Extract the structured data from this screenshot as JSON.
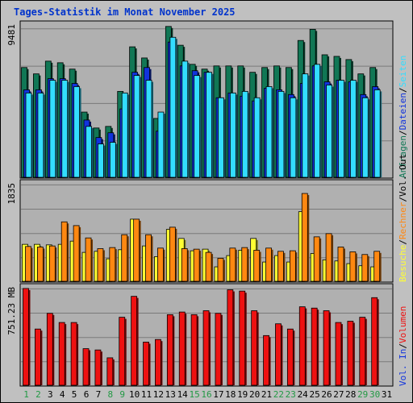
{
  "title": "Tages-Statistik im Monat November 2025",
  "colors": {
    "frame_bg": "#c0c0c0",
    "plot_bg": "#b0b0b0",
    "gridline": "#7a7a7a",
    "title": "#0033cc",
    "anfragen": "#117755",
    "dateien": "#1133dd",
    "seiten": "#33ddff",
    "besuche": "#ffff33",
    "rechner": "#ff8811",
    "volumen": "#ee1111",
    "weekend_label": "#229944",
    "weekday_label": "#000000"
  },
  "panels": {
    "top": {
      "max_label": "9481"
    },
    "middle": {
      "max_label": "1835"
    },
    "bottom": {
      "max_label": "751.23 MB"
    }
  },
  "legend": {
    "top": [
      {
        "text": "Anfragen",
        "color_key": "anfragen"
      },
      {
        "text": "/",
        "color_key": "weekday_label"
      },
      {
        "text": "Dateien",
        "color_key": "dateien"
      },
      {
        "text": "/",
        "color_key": "weekday_label"
      },
      {
        "text": "Seiten",
        "color_key": "seiten"
      }
    ],
    "middle": [
      {
        "text": "Besuche",
        "color_key": "besuche"
      },
      {
        "text": "/",
        "color_key": "weekday_label"
      },
      {
        "text": "Rechner",
        "color_key": "rechner"
      },
      {
        "text": "/",
        "color_key": "weekday_label"
      },
      {
        "text": "Vol. Out",
        "color_key": "weekday_label"
      }
    ],
    "bottom": [
      {
        "text": "Vol. In",
        "color_key": "dateien"
      },
      {
        "text": "/",
        "color_key": "weekday_label"
      },
      {
        "text": "Volumen",
        "color_key": "volumen"
      }
    ]
  },
  "chart_data": {
    "type": "bar",
    "categories": [
      "1",
      "2",
      "3",
      "4",
      "5",
      "6",
      "7",
      "8",
      "9",
      "10",
      "11",
      "12",
      "13",
      "14",
      "15",
      "16",
      "17",
      "18",
      "19",
      "20",
      "21",
      "22",
      "23",
      "24",
      "25",
      "26",
      "27",
      "28",
      "29",
      "30",
      "31"
    ],
    "weekend_days": [
      "1",
      "2",
      "8",
      "9",
      "15",
      "16",
      "22",
      "23",
      "29",
      "30"
    ],
    "panels": [
      {
        "id": "top",
        "ylim": [
          0,
          9481
        ],
        "series": [
          {
            "name": "Anfragen",
            "color_key": "anfragen",
            "values": [
              6900,
              6500,
              7300,
              7200,
              6800,
              4100,
              3100,
              3200,
              5400,
              8200,
              7500,
              3700,
              9481,
              8300,
              7100,
              6800,
              7000,
              7000,
              7000,
              6600,
              6900,
              7000,
              6900,
              8600,
              9300,
              7700,
              7600,
              7400,
              6500,
              6900,
              0
            ]
          },
          {
            "name": "Dateien",
            "color_key": "dateien",
            "values": [
              5500,
              5500,
              6200,
              6200,
              5900,
              3600,
              2500,
              2800,
              4300,
              6600,
              6900,
              2900,
              8500,
              7000,
              6700,
              6600,
              5000,
              5300,
              5100,
              4800,
              5600,
              5500,
              5200,
              5900,
              7000,
              6000,
              6100,
              6000,
              5200,
              5700,
              0
            ]
          },
          {
            "name": "Seiten",
            "color_key": "seiten",
            "values": [
              5300,
              5300,
              6100,
              6100,
              5700,
              3200,
              2100,
              2200,
              5300,
              6400,
              6100,
              4100,
              8800,
              7300,
              6400,
              6600,
              5000,
              5300,
              5400,
              5000,
              5700,
              5400,
              5000,
              6500,
              7100,
              5800,
              6100,
              6100,
              5000,
              5500,
              0
            ]
          }
        ]
      },
      {
        "id": "middle",
        "ylim": [
          0,
          1835
        ],
        "series": [
          {
            "name": "Besuche",
            "color_key": "besuche",
            "values": [
              690,
              690,
              680,
              690,
              750,
              540,
              560,
              420,
              590,
              1160,
              660,
              460,
              970,
              800,
              570,
              600,
              270,
              480,
              580,
              800,
              360,
              480,
              360,
              1300,
              520,
              400,
              380,
              330,
              290,
              270,
              0
            ]
          },
          {
            "name": "Rechner",
            "color_key": "rechner",
            "values": [
              650,
              640,
              660,
              1110,
              1040,
              810,
              610,
              630,
              870,
              1160,
              870,
              620,
              1010,
              610,
              600,
              540,
              430,
              620,
              630,
              580,
              620,
              560,
              570,
              1640,
              830,
              890,
              640,
              550,
              500,
              560,
              0
            ]
          }
        ]
      },
      {
        "id": "bottom",
        "ylim": [
          0,
          751.23
        ],
        "unit": "MB",
        "series": [
          {
            "name": "Volumen",
            "color_key": "volumen",
            "values": [
              740,
              430,
              550,
              480,
              480,
              280,
              270,
              210,
              520,
              680,
              330,
              350,
              540,
              560,
              540,
              570,
              550,
              730,
              720,
              570,
              380,
              470,
              430,
              600,
              590,
              570,
              480,
              490,
              520,
              670,
              0
            ]
          }
        ]
      }
    ]
  }
}
